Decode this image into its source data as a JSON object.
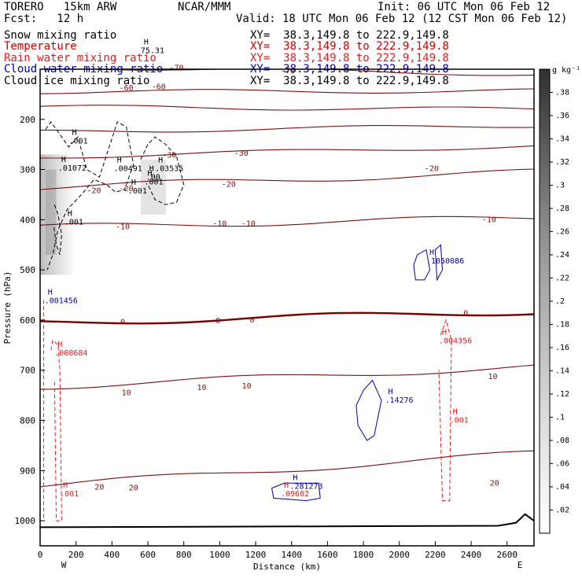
{
  "header": {
    "model": "TORERO   15km ARW",
    "center": "NCAR/MMM",
    "init": "Init: 06 UTC Mon 06 Feb 12",
    "fcst": "Fcst:   12 h",
    "valid": "Valid: 18 UTC Mon 06 Feb 12 (12 CST Mon 06 Feb 12)"
  },
  "legend": [
    {
      "name": "Snow mixing ratio",
      "xy": "XY=  38.3,149.8 to 222.9,149.8",
      "color": "#000000"
    },
    {
      "name": "Temperature",
      "xy": "XY=  38.3,149.8 to 222.9,149.8",
      "color": "#cc0000"
    },
    {
      "name": "Rain water mixing ratio",
      "xy": "XY=  38.3,149.8 to 222.9,149.8",
      "color": "#dd2222"
    },
    {
      "name": "Cloud water mixing ratio",
      "xy": "XY=  38.3,149.8 to 222.9,149.8",
      "color": "#0000aa"
    },
    {
      "name": "Cloud ice mixing ratio",
      "xy": "XY=  38.3,149.8 to 222.9,149.8",
      "color": "#000000"
    }
  ],
  "colors": {
    "temperature": "#7a1010",
    "zero_isotherm": "#7a0000",
    "rain": "#e02020",
    "cloudwater": "#0000aa",
    "snow": "#000000"
  },
  "chart_data": {
    "type": "cross-section contour",
    "xlabel": "Distance (km)",
    "ylabel": "Pressure (hPa)",
    "xlim": [
      0,
      2750
    ],
    "ylim": [
      100,
      1050
    ],
    "x_ticks": [
      0,
      200,
      400,
      600,
      800,
      1000,
      1200,
      1400,
      1600,
      1800,
      2000,
      2200,
      2400,
      2600
    ],
    "y_ticks": [
      200,
      300,
      400,
      500,
      600,
      700,
      800,
      900,
      1000
    ],
    "x_end_labels": {
      "left": "W",
      "right": "E"
    },
    "colorbar": {
      "unit": "g kg⁻¹",
      "ticks": [
        ".02",
        ".04",
        ".06",
        ".08",
        ".1",
        ".12",
        ".14",
        ".16",
        ".18",
        ".2",
        ".22",
        ".24",
        ".26",
        ".28",
        ".3",
        ".32",
        ".34",
        ".36",
        ".38"
      ]
    },
    "temperature_contours": [
      {
        "value": -70,
        "p_left": 95,
        "p_right": 110
      },
      {
        "value": -60,
        "p_left": 145,
        "p_right": 143
      },
      {
        "value": -50,
        "p_left": 175,
        "p_right": 180
      },
      {
        "value": -40,
        "p_left": 225,
        "p_right": 212
      },
      {
        "value": -30,
        "p_left": 275,
        "p_right": 253
      },
      {
        "value": -20,
        "p_left": 335,
        "p_right": 305
      },
      {
        "value": -10,
        "p_left": 415,
        "p_right": 396
      },
      {
        "value": 0,
        "p_left": 606,
        "p_right": 583
      },
      {
        "value": 10,
        "p_left": 733,
        "p_right": 693
      },
      {
        "value": 20,
        "p_left": 930,
        "p_right": 865
      }
    ],
    "contour_labels": [
      {
        "text": "-70",
        "x": 1380,
        "p": 104,
        "series": "temperature"
      },
      {
        "text": "-70",
        "x": 760,
        "p": 98,
        "series": "temperature"
      },
      {
        "text": "-60",
        "x": 480,
        "p": 138,
        "series": "temperature"
      },
      {
        "text": "-60",
        "x": 660,
        "p": 135,
        "series": "temperature"
      },
      {
        "text": "-30",
        "x": 1120,
        "p": 268,
        "series": "temperature"
      },
      {
        "text": "-30",
        "x": 720,
        "p": 272,
        "series": "temperature"
      },
      {
        "text": "-20",
        "x": 300,
        "p": 342,
        "series": "temperature"
      },
      {
        "text": "-20",
        "x": 480,
        "p": 338,
        "series": "temperature"
      },
      {
        "text": "-20",
        "x": 1050,
        "p": 330,
        "series": "temperature"
      },
      {
        "text": "-20",
        "x": 2180,
        "p": 298,
        "series": "temperature"
      },
      {
        "text": "-10",
        "x": 460,
        "p": 414,
        "series": "temperature"
      },
      {
        "text": "-10",
        "x": 1000,
        "p": 408,
        "series": "temperature"
      },
      {
        "text": "-10",
        "x": 1160,
        "p": 408,
        "series": "temperature"
      },
      {
        "text": "-10",
        "x": 2500,
        "p": 400,
        "series": "temperature"
      },
      {
        "text": "0",
        "x": 460,
        "p": 604,
        "series": "temperature"
      },
      {
        "text": "0",
        "x": 990,
        "p": 602,
        "series": "temperature"
      },
      {
        "text": "0",
        "x": 1180,
        "p": 600,
        "series": "temperature"
      },
      {
        "text": "0",
        "x": 2370,
        "p": 587,
        "series": "temperature"
      },
      {
        "text": "10",
        "x": 480,
        "p": 745,
        "series": "temperature"
      },
      {
        "text": "10",
        "x": 900,
        "p": 735,
        "series": "temperature"
      },
      {
        "text": "10",
        "x": 1150,
        "p": 732,
        "series": "temperature"
      },
      {
        "text": "10",
        "x": 2520,
        "p": 713,
        "series": "temperature"
      },
      {
        "text": "20",
        "x": 330,
        "p": 933,
        "series": "temperature"
      },
      {
        "text": "20",
        "x": 520,
        "p": 935,
        "series": "temperature"
      },
      {
        "text": "20",
        "x": 2530,
        "p": 925,
        "series": "temperature"
      }
    ],
    "maxima_labels": [
      {
        "text": ".01072",
        "x": 100,
        "p": 302,
        "series": "snow"
      },
      {
        "text": ".00491",
        "x": 410,
        "p": 303,
        "series": "snow"
      },
      {
        "text": ".03535",
        "x": 640,
        "p": 303,
        "series": "snow"
      },
      {
        "text": ".001",
        "x": 135,
        "p": 410,
        "series": "snow"
      },
      {
        "text": ".001",
        "x": 490,
        "p": 348,
        "series": "snow"
      },
      {
        "text": ".001",
        "x": 160,
        "p": 248,
        "series": "snow"
      },
      {
        "text": ".00",
        "x": 590,
        "p": 320,
        "series": "snow"
      },
      {
        "text": ".001",
        "x": 580,
        "p": 330,
        "series": "snow"
      },
      {
        "text": "75.31",
        "x": 560,
        "p": 68,
        "series": "snow"
      },
      {
        "text": ".001456",
        "x": 25,
        "p": 566,
        "series": "cloudwater"
      },
      {
        "text": ".1050086",
        "x": 2150,
        "p": 487,
        "series": "cloudwater"
      },
      {
        "text": ".14276",
        "x": 1920,
        "p": 765,
        "series": "cloudwater"
      },
      {
        "text": ".281273",
        "x": 1390,
        "p": 936,
        "series": "cloudwater"
      },
      {
        "text": ".008684",
        "x": 80,
        "p": 671,
        "series": "rain"
      },
      {
        "text": ".004356",
        "x": 2220,
        "p": 646,
        "series": "rain"
      },
      {
        "text": ".001",
        "x": 2280,
        "p": 805,
        "series": "rain"
      },
      {
        "text": ".001",
        "x": 110,
        "p": 951,
        "series": "rain"
      },
      {
        "text": ".09602",
        "x": 1340,
        "p": 951,
        "series": "rain"
      }
    ]
  }
}
